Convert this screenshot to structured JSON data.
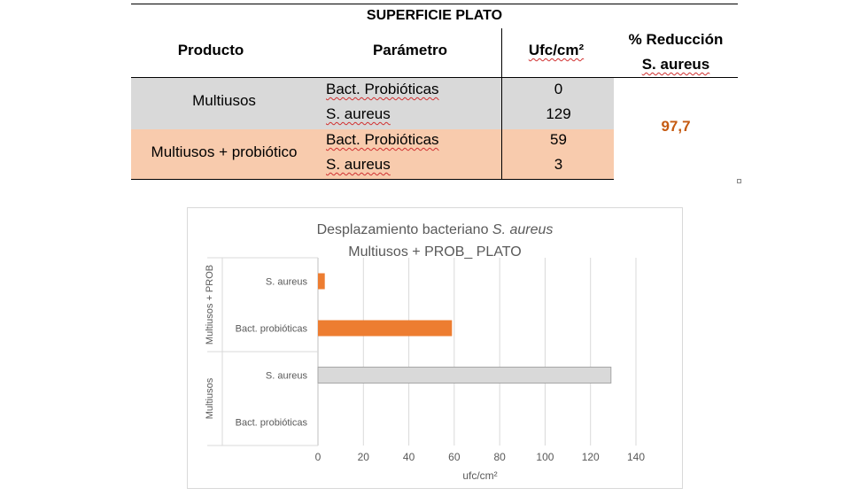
{
  "table": {
    "title": "SUPERFICIE PLATO",
    "headers": {
      "producto": "Producto",
      "parametro": "Parámetro",
      "ufc": "Ufc/cm²",
      "reduccion_line1": "% Reducción",
      "reduccion_line2": "S. aureus"
    },
    "groups": [
      {
        "producto": "Multiusos",
        "rows": [
          {
            "parametro": "Bact. Probióticas",
            "ufc": "0"
          },
          {
            "parametro": "S. aureus",
            "ufc": "129"
          }
        ]
      },
      {
        "producto": "Multiusos + probiótico",
        "rows": [
          {
            "parametro": "Bact. Probióticas",
            "ufc": "59"
          },
          {
            "parametro": "S. aureus",
            "ufc": "3"
          }
        ]
      }
    ],
    "reduccion_value": "97,7",
    "colors": {
      "gray_fill": "#d9d9d9",
      "peach_fill": "#f8cbad",
      "reduction_text": "#c55a11"
    }
  },
  "chart_data": {
    "type": "bar",
    "orientation": "horizontal",
    "title_line1_prefix": "Desplazamiento bacteriano ",
    "title_line1_italic": "S. aureus",
    "title_line2": "Multiusos + PROB_ PLATO",
    "xlabel": "ufc/cm²",
    "xlim": [
      0,
      140
    ],
    "xticks": [
      0,
      20,
      40,
      60,
      80,
      100,
      120,
      140
    ],
    "groups": [
      {
        "name": "Multiusos + PROB",
        "bars": [
          {
            "label": "S. aureus",
            "value": 3,
            "color": "#ed7d31"
          },
          {
            "label": "Bact. probióticas",
            "value": 59,
            "color": "#ed7d31"
          }
        ]
      },
      {
        "name": "Multiusos",
        "bars": [
          {
            "label": "S. aureus",
            "value": 129,
            "color": "#d9d9d9"
          },
          {
            "label": "Bact. probióticas",
            "value": 0,
            "color": "#d9d9d9"
          }
        ]
      }
    ],
    "grid": true,
    "legend": "none"
  }
}
